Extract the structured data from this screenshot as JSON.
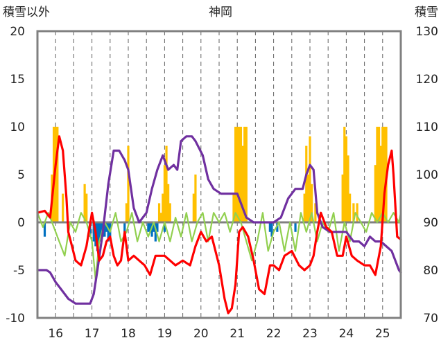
{
  "chart_data": {
    "type": "bar+line",
    "title": "神岡",
    "left_axis_label": "積雪以外",
    "right_axis_label": "積雪",
    "x_tick_labels": [
      "16",
      "17",
      "18",
      "19",
      "20",
      "21",
      "22",
      "23",
      "24",
      "25"
    ],
    "x_range": [
      15.5,
      25.5
    ],
    "y_left_range": [
      -10,
      20
    ],
    "y_left_ticks": [
      -10,
      -5,
      0,
      5,
      10,
      15,
      20
    ],
    "y_right_range": [
      70,
      130
    ],
    "y_right_ticks": [
      70,
      80,
      90,
      100,
      110,
      120,
      130
    ],
    "grid": "dashed vertical lines at day boundaries and mid-days",
    "colors": {
      "red": "#ff0000",
      "purple": "#7030a0",
      "green": "#92d050",
      "orange_bars": "#ffc000",
      "blue_bars": "#0070c0",
      "frame": "#808080",
      "zero_line": "#808080"
    },
    "series": [
      {
        "type": "line",
        "axis": "left",
        "color": "#ff0000",
        "x": [
          15.5,
          15.7,
          15.85,
          16.0,
          16.1,
          16.2,
          16.3,
          16.35,
          16.45,
          16.55,
          16.7,
          16.85,
          17.0,
          17.1,
          17.2,
          17.3,
          17.4,
          17.5,
          17.6,
          17.7,
          17.8,
          17.9,
          18.0,
          18.15,
          18.3,
          18.45,
          18.6,
          18.75,
          18.9,
          19.0,
          19.15,
          19.3,
          19.5,
          19.7,
          19.85,
          20.0,
          20.15,
          20.3,
          20.5,
          20.65,
          20.75,
          20.85,
          20.95,
          21.05,
          21.15,
          21.3,
          21.45,
          21.6,
          21.75,
          21.9,
          22.0,
          22.15,
          22.3,
          22.5,
          22.7,
          22.85,
          23.0,
          23.1,
          23.2,
          23.3,
          23.45,
          23.6,
          23.75,
          23.9,
          24.0,
          24.15,
          24.3,
          24.5,
          24.65,
          24.8,
          24.95,
          25.05,
          25.15,
          25.25,
          25.3,
          25.4,
          25.5
        ],
        "y": [
          1.0,
          1.2,
          0.5,
          6.0,
          9.0,
          7.5,
          2.5,
          -1.0,
          -2.5,
          -4.0,
          -4.5,
          -2.5,
          1.0,
          -1.0,
          -4.0,
          -3.5,
          -2.0,
          -1.5,
          -3.5,
          -4.5,
          -4.0,
          -1.0,
          -4.0,
          -3.5,
          -4.0,
          -4.5,
          -5.5,
          -3.5,
          -3.5,
          -3.5,
          -4.0,
          -4.5,
          -4.0,
          -4.5,
          -2.5,
          -1.0,
          -2.0,
          -1.5,
          -4.5,
          -8.0,
          -9.5,
          -9.0,
          -6.5,
          -1.0,
          -0.5,
          -1.5,
          -4.0,
          -7.0,
          -7.5,
          -4.5,
          -4.5,
          -5.0,
          -3.5,
          -3.0,
          -4.5,
          -5.0,
          -4.5,
          -3.5,
          -1.0,
          1.0,
          -0.5,
          -1.0,
          -3.5,
          -3.5,
          -1.5,
          -3.5,
          -4.0,
          -4.5,
          -4.5,
          -5.5,
          -2.5,
          3.0,
          6.0,
          7.5,
          5.0,
          -1.5,
          -1.8
        ]
      },
      {
        "type": "line",
        "axis": "right",
        "color": "#7030a0",
        "x": [
          15.5,
          15.75,
          15.85,
          16.0,
          16.15,
          16.35,
          16.55,
          16.75,
          16.95,
          17.05,
          17.15,
          17.3,
          17.45,
          17.6,
          17.75,
          17.9,
          18.0,
          18.15,
          18.3,
          18.5,
          18.65,
          18.8,
          18.95,
          19.1,
          19.25,
          19.35,
          19.45,
          19.6,
          19.75,
          19.85,
          20.05,
          20.2,
          20.35,
          20.55,
          20.75,
          20.9,
          21.0,
          21.25,
          21.45,
          21.6,
          21.75,
          22.0,
          22.2,
          22.4,
          22.6,
          22.8,
          22.9,
          23.0,
          23.1,
          23.2,
          23.35,
          23.55,
          23.75,
          24.0,
          24.2,
          24.35,
          24.5,
          24.65,
          24.8,
          24.95,
          25.1,
          25.25,
          25.35,
          25.45,
          25.5
        ],
        "y": [
          80,
          80,
          79.5,
          77.5,
          76,
          74,
          73,
          73,
          73,
          75,
          80,
          88,
          98,
          105,
          105,
          103,
          101,
          93,
          90,
          92,
          97,
          101,
          104,
          101,
          102,
          101,
          107,
          108,
          108,
          107,
          104,
          99,
          97,
          96,
          96,
          96,
          96,
          91,
          90,
          90,
          90,
          90,
          91,
          95,
          97,
          97,
          100,
          102,
          101,
          92,
          89,
          88,
          88,
          88,
          86,
          86,
          85,
          87,
          86,
          86,
          85,
          84,
          82,
          80,
          79.5
        ]
      },
      {
        "type": "line",
        "axis": "left",
        "color": "#92d050",
        "x": [
          15.5,
          15.65,
          15.8,
          15.95,
          16.1,
          16.25,
          16.4,
          16.55,
          16.7,
          16.85,
          17.0,
          17.1,
          17.2,
          17.35,
          17.5,
          17.65,
          17.8,
          17.95,
          18.1,
          18.25,
          18.4,
          18.55,
          18.7,
          18.85,
          19.0,
          19.15,
          19.3,
          19.45,
          19.6,
          19.75,
          19.9,
          20.05,
          20.2,
          20.35,
          20.5,
          20.65,
          20.8,
          20.95,
          21.1,
          21.25,
          21.4,
          21.55,
          21.7,
          21.85,
          22.0,
          22.15,
          22.3,
          22.45,
          22.6,
          22.75,
          22.9,
          23.05,
          23.2,
          23.35,
          23.5,
          23.65,
          23.8,
          23.95,
          24.1,
          24.25,
          24.4,
          24.55,
          24.7,
          24.85,
          25.0,
          25.15,
          25.3,
          25.45,
          25.5
        ],
        "y": [
          1,
          -0.5,
          1,
          -0.5,
          -2,
          -3.5,
          0,
          -1,
          1,
          0,
          -2,
          -6,
          -2,
          0,
          -1,
          1,
          -2,
          -1,
          1,
          -2,
          0,
          -1.5,
          0,
          -2,
          0,
          -2,
          0.5,
          -1.5,
          1,
          -2,
          0,
          1,
          -2,
          1,
          0,
          1,
          -1,
          1,
          0,
          -2,
          -4,
          -2,
          1,
          -3,
          -1,
          0,
          -3,
          0,
          -3,
          1,
          -1,
          1,
          -2,
          0,
          -1,
          1,
          -3,
          0,
          -2,
          1,
          0,
          -1,
          1,
          0,
          1,
          0,
          1,
          0,
          1
        ]
      },
      {
        "type": "bar",
        "axis": "left",
        "color": "#ffc000",
        "x": [
          15.9,
          15.95,
          16.0,
          16.05,
          16.2,
          16.8,
          16.85,
          17.95,
          18.0,
          18.85,
          18.9,
          18.95,
          19.0,
          19.05,
          19.1,
          19.15,
          19.8,
          19.85,
          20.9,
          20.95,
          20.98,
          21.0,
          21.02,
          21.05,
          21.1,
          21.15,
          21.2,
          21.25,
          22.85,
          22.9,
          22.95,
          23.0,
          23.05,
          23.15,
          23.9,
          23.95,
          24.0,
          24.05,
          24.1,
          24.2,
          24.3,
          24.8,
          24.85,
          24.9,
          24.95,
          25.0,
          25.05,
          25.1
        ],
        "y": [
          5,
          10,
          10,
          10,
          3,
          4,
          3,
          2,
          8,
          2,
          1,
          3,
          6,
          8,
          4,
          2,
          3,
          5,
          3,
          10,
          8,
          10,
          6,
          10,
          10,
          8,
          10,
          10,
          3,
          8,
          5,
          9,
          4,
          2,
          5,
          10,
          9,
          7,
          3,
          2,
          2,
          6,
          10,
          10,
          8,
          10,
          10,
          10
        ]
      },
      {
        "type": "bar",
        "axis": "left",
        "color": "#0070c0",
        "x": [
          15.7,
          16.95,
          17.05,
          17.1,
          17.15,
          17.2,
          17.25,
          17.3,
          17.35,
          17.4,
          17.45,
          17.5,
          17.9,
          18.55,
          18.6,
          18.65,
          18.7,
          18.75,
          18.8,
          19.0,
          21.9,
          21.95,
          22.1,
          22.6
        ],
        "y": [
          -1.5,
          -1.5,
          -2,
          -2.5,
          -3,
          -2,
          -2,
          -1.5,
          -1.5,
          -1,
          -2,
          -1.5,
          -1,
          -1,
          -1,
          -1.5,
          -1,
          -2,
          -1,
          -1,
          -1,
          -1.5,
          -1,
          -1
        ]
      }
    ]
  }
}
